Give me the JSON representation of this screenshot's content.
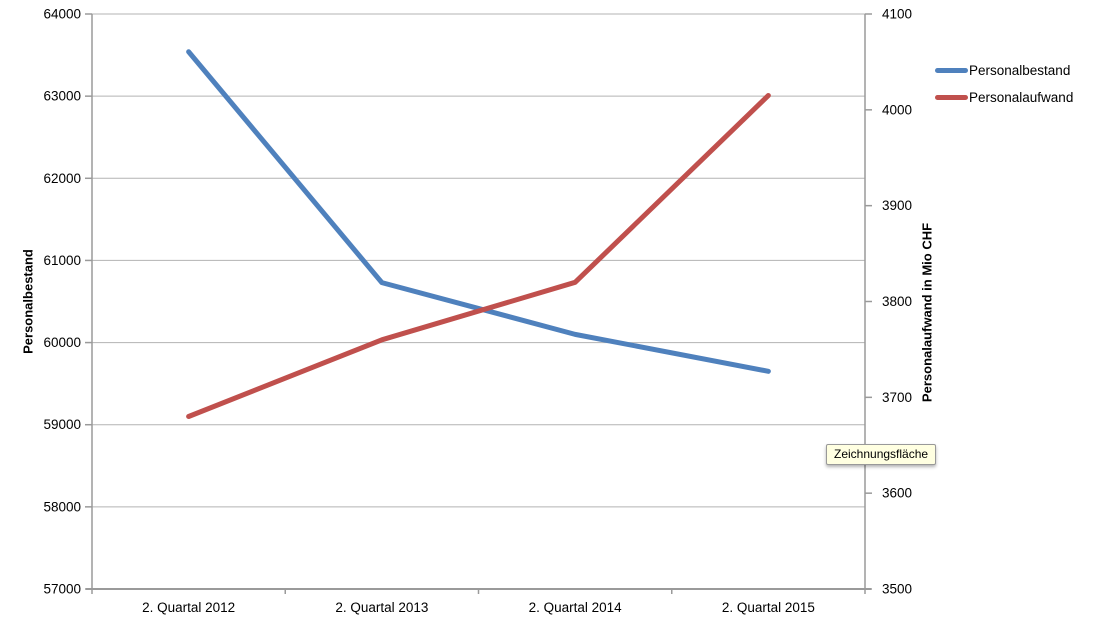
{
  "chart_data": {
    "type": "line",
    "categories": [
      "2. Quartal 2012",
      "2. Quartal 2013",
      "2. Quartal 2014",
      "2. Quartal 2015"
    ],
    "series": [
      {
        "name": "Personalbestand",
        "axis": "left",
        "color": "#4F81BD",
        "values": [
          63540,
          60730,
          60100,
          59650
        ]
      },
      {
        "name": "Personalaufwand",
        "axis": "right",
        "color": "#C0504D",
        "values": [
          3680,
          3760,
          3820,
          4015
        ]
      }
    ],
    "left_axis": {
      "title": "Personalbestand",
      "min": 57000,
      "max": 64000,
      "step": 1000
    },
    "right_axis": {
      "title": "Personalaufwand in Mio CHF",
      "min": 3500,
      "max": 4100,
      "step": 100
    },
    "grid": true,
    "legend_position": "right"
  },
  "tooltip": {
    "text": "Zeichnungsfläche"
  },
  "colors": {
    "series_blue": "#4F81BD",
    "series_red": "#C0504D",
    "gridline": "#B3B3B3",
    "axis_line": "#9A9A9A",
    "tick_text": "#000000",
    "tooltip_bg": "#FFFFE1",
    "tooltip_border": "#999999"
  }
}
